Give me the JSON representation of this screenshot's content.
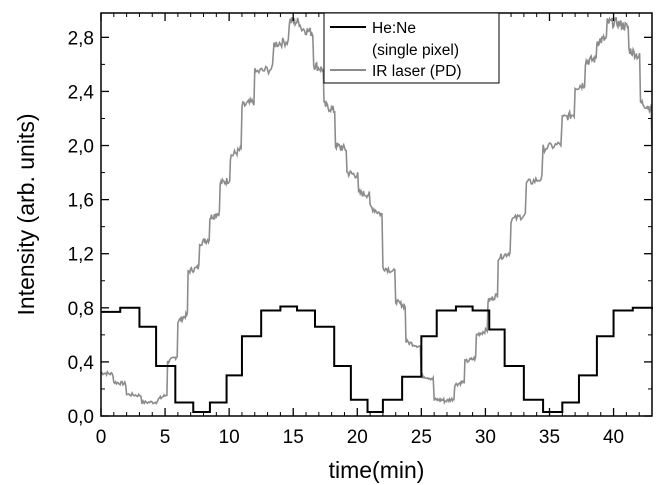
{
  "chart_data": {
    "type": "line",
    "title": "",
    "xlabel": "time(min)",
    "ylabel": "Intensity (arb. units)",
    "xlim": [
      0,
      43
    ],
    "ylim": [
      0,
      2.98
    ],
    "xticks": [
      0,
      5,
      10,
      15,
      20,
      25,
      30,
      35,
      40
    ],
    "xtick_labels": [
      "0",
      "5",
      "10",
      "15",
      "20",
      "25",
      "30",
      "35",
      "40"
    ],
    "yticks": [
      0,
      0.4,
      0.8,
      1.2,
      1.6,
      2.0,
      2.4,
      2.8
    ],
    "ytick_labels": [
      "0,0",
      "0,4",
      "0,8",
      "1,2",
      "1,6",
      "2,0",
      "2,4",
      "2,8"
    ],
    "grid": false,
    "legend_position": "top-right",
    "series": [
      {
        "name": "He:Ne",
        "name_line2": "(single pixel)",
        "color": "#000000",
        "style": "step",
        "x": [
          0,
          1.5,
          3.0,
          4.3,
          5.8,
          7.2,
          8.5,
          9.8,
          11.0,
          12.5,
          14.0,
          15.3,
          16.7,
          18.2,
          19.5,
          20.8,
          22.0,
          23.5,
          25.0,
          26.2,
          27.7,
          29.0,
          30.3,
          31.5,
          33.0,
          34.5,
          36.0,
          37.3,
          38.7,
          40.0,
          41.5,
          43.0
        ],
        "y": [
          0.77,
          0.8,
          0.66,
          0.37,
          0.1,
          0.03,
          0.1,
          0.3,
          0.59,
          0.78,
          0.81,
          0.78,
          0.66,
          0.37,
          0.12,
          0.03,
          0.12,
          0.29,
          0.59,
          0.78,
          0.81,
          0.78,
          0.64,
          0.37,
          0.12,
          0.03,
          0.1,
          0.3,
          0.59,
          0.78,
          0.8,
          0.79
        ]
      },
      {
        "name": "IR laser (PD)",
        "color": "#8c8c8c",
        "style": "noisy-step",
        "x": [
          0,
          1.0,
          2.0,
          3.2,
          4.4,
          5.2,
          6.0,
          6.8,
          7.7,
          8.5,
          9.3,
          10.1,
          11.0,
          12.0,
          13.5,
          14.7,
          15.6,
          16.6,
          17.4,
          18.3,
          19.2,
          20.1,
          21.0,
          22.0,
          23.0,
          23.8,
          25.0,
          26.0,
          26.8,
          27.6,
          28.4,
          29.3,
          30.2,
          31.0,
          32.0,
          33.2,
          34.5,
          36.0,
          37.0,
          37.8,
          38.7,
          39.5,
          40.4,
          41.2,
          42.1,
          43.0
        ],
        "y": [
          0.32,
          0.25,
          0.16,
          0.1,
          0.12,
          0.4,
          0.7,
          1.07,
          1.28,
          1.47,
          1.72,
          1.92,
          2.29,
          2.54,
          2.75,
          2.92,
          2.87,
          2.6,
          2.3,
          2.0,
          1.8,
          1.65,
          1.55,
          1.1,
          0.85,
          0.55,
          0.3,
          0.12,
          0.11,
          0.23,
          0.4,
          0.6,
          0.85,
          1.17,
          1.45,
          1.72,
          1.98,
          2.2,
          2.43,
          2.62,
          2.77,
          2.91,
          2.9,
          2.71,
          2.32,
          2.0
        ]
      }
    ]
  }
}
